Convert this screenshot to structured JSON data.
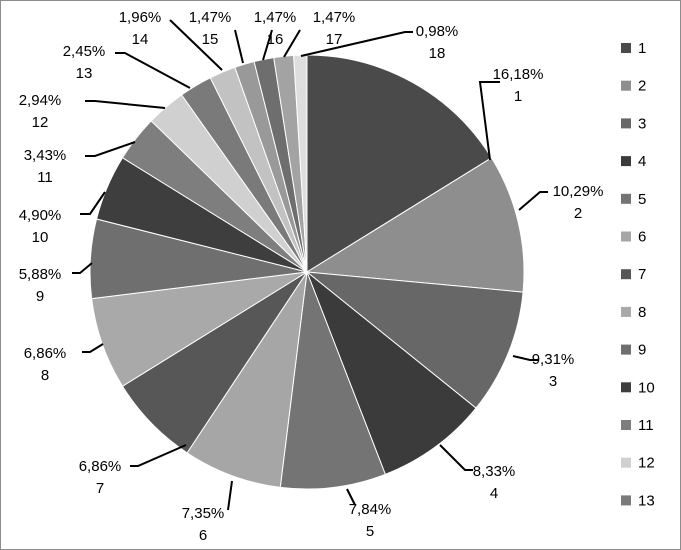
{
  "chart_data": {
    "type": "pie",
    "categories": [
      "1",
      "2",
      "3",
      "4",
      "5",
      "6",
      "7",
      "8",
      "9",
      "10",
      "11",
      "12",
      "13",
      "14",
      "15",
      "16",
      "17",
      "18"
    ],
    "values": [
      16.18,
      10.29,
      9.31,
      8.33,
      7.84,
      7.35,
      6.86,
      6.86,
      5.88,
      4.9,
      3.43,
      2.94,
      2.45,
      1.96,
      1.47,
      1.47,
      1.47,
      0.98
    ],
    "labels": [
      "16,18%",
      "10,29%",
      "9,31%",
      "8,33%",
      "7,84%",
      "7,35%",
      "6,86%",
      "6,86%",
      "5,88%",
      "4,90%",
      "3,43%",
      "2,94%",
      "2,45%",
      "1,96%",
      "1,47%",
      "1,47%",
      "1,47%",
      "0,98%"
    ],
    "colors": [
      "#4a4a4a",
      "#8e8e8e",
      "#676767",
      "#3b3b3b",
      "#747474",
      "#a6a6a6",
      "#575757",
      "#a9a9a9",
      "#6f6f6f",
      "#3e3e3e",
      "#7e7e7e",
      "#d0d0d0",
      "#7a7a7a",
      "#c2c2c2",
      "#999999",
      "#6e6e6e",
      "#a3a3a3",
      "#dedede"
    ],
    "legend": {
      "placement": "right",
      "visible_entries": 13
    },
    "title": "",
    "xlabel": "",
    "ylabel": ""
  }
}
